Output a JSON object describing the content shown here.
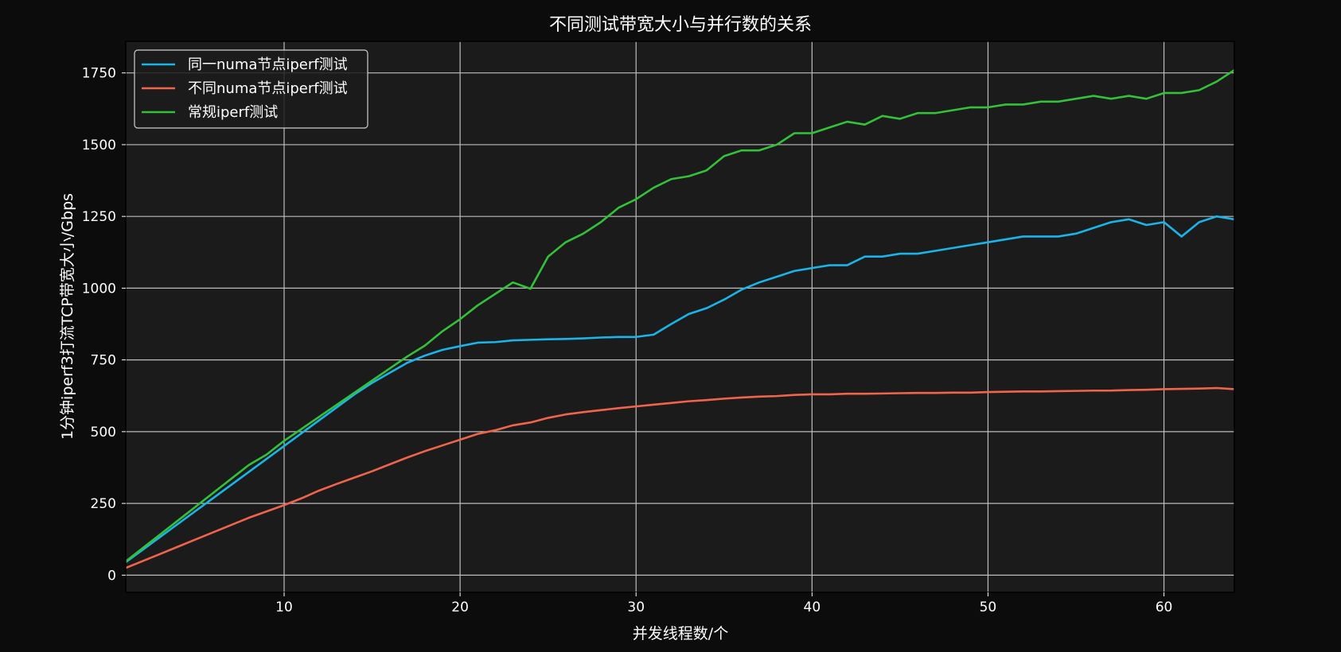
{
  "chart_data": {
    "type": "line",
    "title": "不同测试带宽大小与并行数的关系",
    "xlabel": "并发线程数/个",
    "ylabel": "1分钟iperf3打流TCP带宽大小/Gbps",
    "xlim": [
      1,
      64
    ],
    "ylim": [
      -60,
      1860
    ],
    "xticks": [
      10,
      20,
      30,
      40,
      50,
      60
    ],
    "yticks": [
      0,
      250,
      500,
      750,
      1000,
      1250,
      1500,
      1750
    ],
    "grid": true,
    "legend_position": "top-left",
    "background_color": "#1b1b1b",
    "figure_color": "#0c0c0c",
    "series": [
      {
        "name": "同一numa节点iperf测试",
        "color": "#1ab4e8",
        "x": [
          1,
          2,
          3,
          4,
          5,
          6,
          7,
          8,
          9,
          10,
          11,
          12,
          13,
          14,
          15,
          16,
          17,
          18,
          19,
          20,
          21,
          22,
          23,
          24,
          25,
          26,
          27,
          28,
          29,
          30,
          31,
          32,
          33,
          34,
          35,
          36,
          37,
          38,
          39,
          40,
          41,
          42,
          43,
          44,
          45,
          46,
          47,
          48,
          49,
          50,
          51,
          52,
          53,
          54,
          55,
          56,
          57,
          58,
          59,
          60,
          61,
          62,
          63,
          64
        ],
        "values": [
          45,
          90,
          135,
          180,
          225,
          270,
          315,
          360,
          405,
          450,
          495,
          540,
          585,
          630,
          670,
          705,
          740,
          765,
          785,
          798,
          810,
          812,
          818,
          820,
          822,
          823,
          825,
          828,
          830,
          830,
          838,
          875,
          910,
          930,
          960,
          995,
          1020,
          1040,
          1060,
          1070,
          1080,
          1080,
          1110,
          1110,
          1120,
          1120,
          1130,
          1140,
          1150,
          1160,
          1170,
          1180,
          1180,
          1180,
          1190,
          1210,
          1230,
          1240,
          1220,
          1230,
          1180,
          1230,
          1250,
          1240
        ]
      },
      {
        "name": "不同numa节点iperf测试",
        "color": "#f0644c",
        "x": [
          1,
          2,
          3,
          4,
          5,
          6,
          7,
          8,
          9,
          10,
          11,
          12,
          13,
          14,
          15,
          16,
          17,
          18,
          19,
          20,
          21,
          22,
          23,
          24,
          25,
          26,
          27,
          28,
          29,
          30,
          31,
          32,
          33,
          34,
          35,
          36,
          37,
          38,
          39,
          40,
          41,
          42,
          43,
          44,
          45,
          46,
          47,
          48,
          49,
          50,
          51,
          52,
          53,
          54,
          55,
          56,
          57,
          58,
          59,
          60,
          61,
          62,
          63,
          64
        ],
        "values": [
          25,
          50,
          75,
          100,
          125,
          150,
          175,
          200,
          222,
          244,
          268,
          295,
          318,
          340,
          362,
          386,
          410,
          432,
          452,
          472,
          492,
          505,
          522,
          532,
          548,
          560,
          568,
          575,
          582,
          588,
          594,
          600,
          606,
          610,
          615,
          619,
          622,
          624,
          628,
          630,
          630,
          632,
          632,
          633,
          634,
          635,
          635,
          636,
          636,
          638,
          639,
          640,
          640,
          641,
          642,
          643,
          643,
          645,
          646,
          648,
          649,
          650,
          652,
          648
        ]
      },
      {
        "name": "常规iperf测试",
        "color": "#33c13a",
        "x": [
          1,
          2,
          3,
          4,
          5,
          6,
          7,
          8,
          9,
          10,
          11,
          12,
          13,
          14,
          15,
          16,
          17,
          18,
          19,
          20,
          21,
          22,
          23,
          24,
          25,
          26,
          27,
          28,
          29,
          30,
          31,
          32,
          33,
          34,
          35,
          36,
          37,
          38,
          39,
          40,
          41,
          42,
          43,
          44,
          45,
          46,
          47,
          48,
          49,
          50,
          51,
          52,
          53,
          54,
          55,
          56,
          57,
          58,
          59,
          60,
          61,
          62,
          63,
          64
        ],
        "values": [
          48,
          96,
          144,
          192,
          240,
          288,
          336,
          384,
          420,
          468,
          510,
          552,
          594,
          636,
          678,
          720,
          762,
          800,
          850,
          892,
          940,
          980,
          1020,
          998,
          1110,
          1160,
          1190,
          1230,
          1280,
          1310,
          1350,
          1380,
          1390,
          1410,
          1460,
          1480,
          1480,
          1500,
          1540,
          1540,
          1560,
          1580,
          1570,
          1600,
          1590,
          1610,
          1610,
          1620,
          1630,
          1630,
          1640,
          1640,
          1650,
          1650,
          1660,
          1670,
          1660,
          1670,
          1660,
          1680,
          1680,
          1690,
          1720,
          1760
        ]
      }
    ]
  }
}
